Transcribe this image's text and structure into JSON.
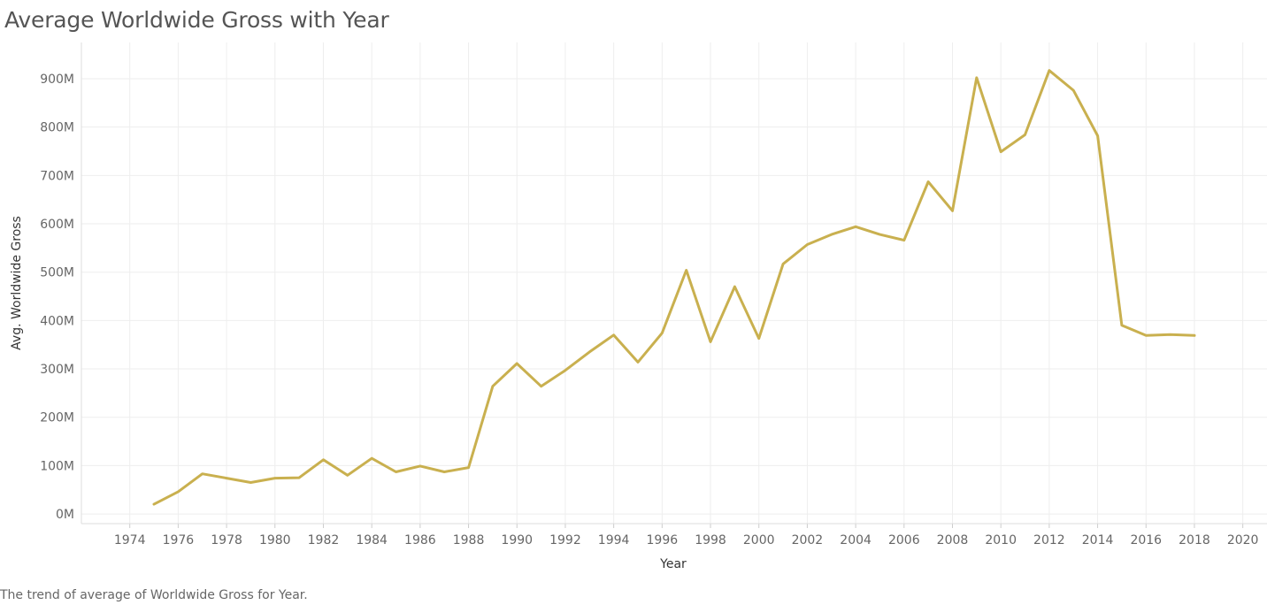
{
  "title": "Average Worldwide Gross with Year",
  "caption": "The trend of average of Worldwide Gross for Year.",
  "chart_data": {
    "type": "line",
    "title": "Average Worldwide Gross with Year",
    "xlabel": "Year",
    "ylabel": "Avg. Worldwide Gross",
    "xlim": [
      1972,
      2021
    ],
    "ylim": [
      -20000000,
      975000000
    ],
    "x_ticks": [
      1974,
      1976,
      1978,
      1980,
      1982,
      1984,
      1986,
      1988,
      1990,
      1992,
      1994,
      1996,
      1998,
      2000,
      2002,
      2004,
      2006,
      2008,
      2010,
      2012,
      2014,
      2016,
      2018,
      2020
    ],
    "y_ticks": [
      0,
      100000000,
      200000000,
      300000000,
      400000000,
      500000000,
      600000000,
      700000000,
      800000000,
      900000000
    ],
    "y_tick_labels": [
      "0M",
      "100M",
      "200M",
      "300M",
      "400M",
      "500M",
      "600M",
      "700M",
      "800M",
      "900M"
    ],
    "grid": true,
    "line_color": "#C9B04F",
    "x": [
      1975,
      1976,
      1977,
      1978,
      1979,
      1980,
      1981,
      1982,
      1983,
      1984,
      1985,
      1986,
      1987,
      1988,
      1989,
      1990,
      1991,
      1992,
      1993,
      1994,
      1995,
      1996,
      1997,
      1998,
      1999,
      2000,
      2001,
      2002,
      2003,
      2004,
      2005,
      2006,
      2007,
      2008,
      2009,
      2010,
      2011,
      2012,
      2013,
      2014,
      2015,
      2016,
      2017,
      2018
    ],
    "values": [
      20000000,
      46000000,
      83000000,
      74000000,
      65000000,
      74000000,
      75000000,
      112000000,
      80000000,
      115000000,
      87000000,
      99000000,
      87000000,
      96000000,
      264000000,
      311000000,
      264000000,
      297000000,
      335000000,
      370000000,
      314000000,
      374000000,
      504000000,
      356000000,
      470000000,
      363000000,
      517000000,
      557000000,
      578000000,
      594000000,
      578000000,
      566000000,
      687000000,
      627000000,
      902000000,
      749000000,
      784000000,
      917000000,
      876000000,
      782000000,
      390000000,
      369000000,
      371000000,
      369000000
    ]
  }
}
